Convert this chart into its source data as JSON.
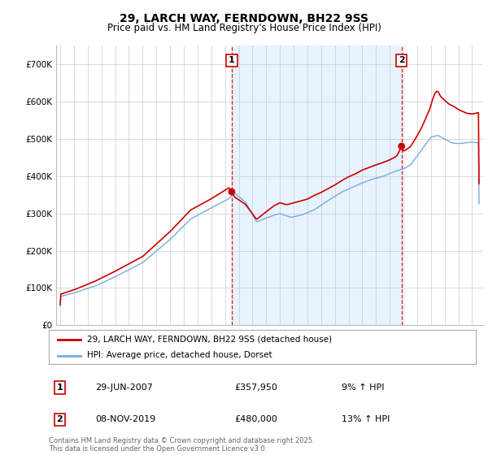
{
  "title": "29, LARCH WAY, FERNDOWN, BH22 9SS",
  "subtitle": "Price paid vs. HM Land Registry's House Price Index (HPI)",
  "ylabel_ticks": [
    "£0",
    "£100K",
    "£200K",
    "£300K",
    "£400K",
    "£500K",
    "£600K",
    "£700K"
  ],
  "ytick_vals": [
    0,
    100000,
    200000,
    300000,
    400000,
    500000,
    600000,
    700000
  ],
  "ylim": [
    0,
    750000
  ],
  "xlim_start": 1994.7,
  "xlim_end": 2025.8,
  "sale1_date": 2007.49,
  "sale1_price": 357950,
  "sale1_label": "1",
  "sale1_text": "29-JUN-2007",
  "sale1_amount": "£357,950",
  "sale1_hpi": "9% ↑ HPI",
  "sale2_date": 2019.86,
  "sale2_price": 480000,
  "sale2_label": "2",
  "sale2_text": "08-NOV-2019",
  "sale2_amount": "£480,000",
  "sale2_hpi": "13% ↑ HPI",
  "legend_line1": "29, LARCH WAY, FERNDOWN, BH22 9SS (detached house)",
  "legend_line2": "HPI: Average price, detached house, Dorset",
  "footer": "Contains HM Land Registry data © Crown copyright and database right 2025.\nThis data is licensed under the Open Government Licence v3.0.",
  "line_color_red": "#cc0000",
  "line_color_blue": "#7aaadd",
  "shade_color": "#ddeeff",
  "background_color": "#ffffff",
  "grid_color": "#cccccc",
  "annotation_box_color": "#cc0000",
  "fig_width": 6.0,
  "fig_height": 5.6,
  "dpi": 100
}
